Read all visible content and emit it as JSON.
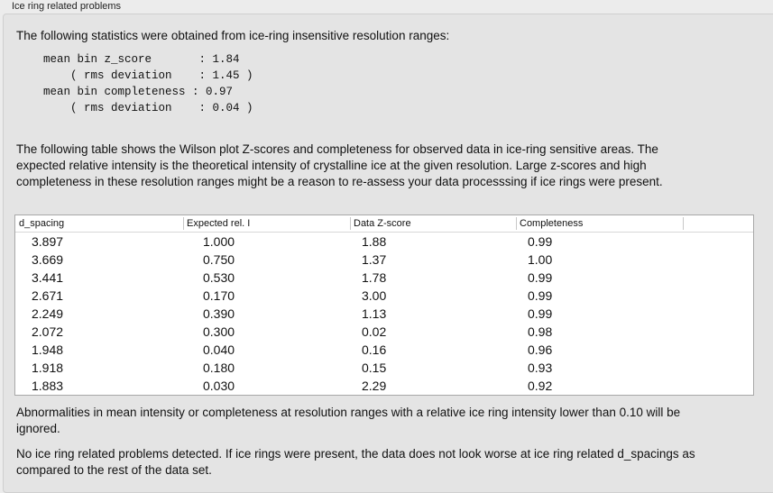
{
  "group_title": "Ice ring related problems",
  "intro": "The following statistics were obtained from ice-ring insensitive resolution ranges:",
  "stats_lines": [
    "mean bin z_score       : 1.84",
    "    ( rms deviation    : 1.45 )",
    "mean bin completeness : 0.97",
    "    ( rms deviation    : 0.04 )"
  ],
  "table_description": "The following table shows the Wilson plot Z-scores and completeness for observed data in ice-ring sensitive areas. The expected relative intensity is the theoretical intensity of crystalline ice at the given resolution. Large z-scores and high completeness in these resolution ranges might be a reason to re-assess your data processsing if ice rings were present.",
  "table": {
    "columns": [
      "d_spacing",
      "Expected rel. I",
      "Data Z-score",
      "Completeness"
    ],
    "rows": [
      [
        "3.897",
        "1.000",
        "1.88",
        "0.99"
      ],
      [
        "3.669",
        "0.750",
        "1.37",
        "1.00"
      ],
      [
        "3.441",
        "0.530",
        "1.78",
        "0.99"
      ],
      [
        "2.671",
        "0.170",
        "3.00",
        "0.99"
      ],
      [
        "2.249",
        "0.390",
        "1.13",
        "0.99"
      ],
      [
        "2.072",
        "0.300",
        "0.02",
        "0.98"
      ],
      [
        "1.948",
        "0.040",
        "0.16",
        "0.96"
      ],
      [
        "1.918",
        "0.180",
        "0.15",
        "0.93"
      ],
      [
        "1.883",
        "0.030",
        "2.29",
        "0.92"
      ]
    ]
  },
  "note": "Abnormalities in mean intensity or completeness at resolution ranges with a relative ice ring intensity lower than 0.10 will be ignored.",
  "conclusion": "No ice ring related problems detected. If ice rings were present, the data does not look worse at ice ring related d_spacings as compared to the rest of the data set."
}
